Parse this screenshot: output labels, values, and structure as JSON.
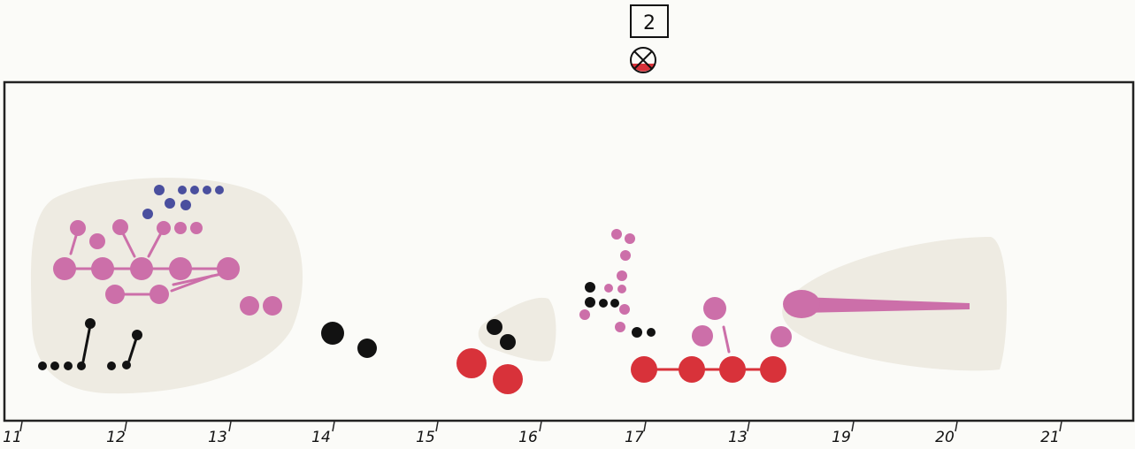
{
  "figure_number": "2",
  "symbol_icon": "crossed-circle-with-red-segment-icon",
  "axis_labels": [
    "11",
    "12",
    "13",
    "14",
    "15",
    "16",
    "17",
    "13",
    "19",
    "20",
    "21"
  ],
  "colors": {
    "pink": "#cc6fa9",
    "blue": "#4a4f9e",
    "black": "#121212",
    "red": "#d8323a",
    "blob": "#eeebe2",
    "frame": "#222222",
    "background": "#fbfbf8"
  }
}
